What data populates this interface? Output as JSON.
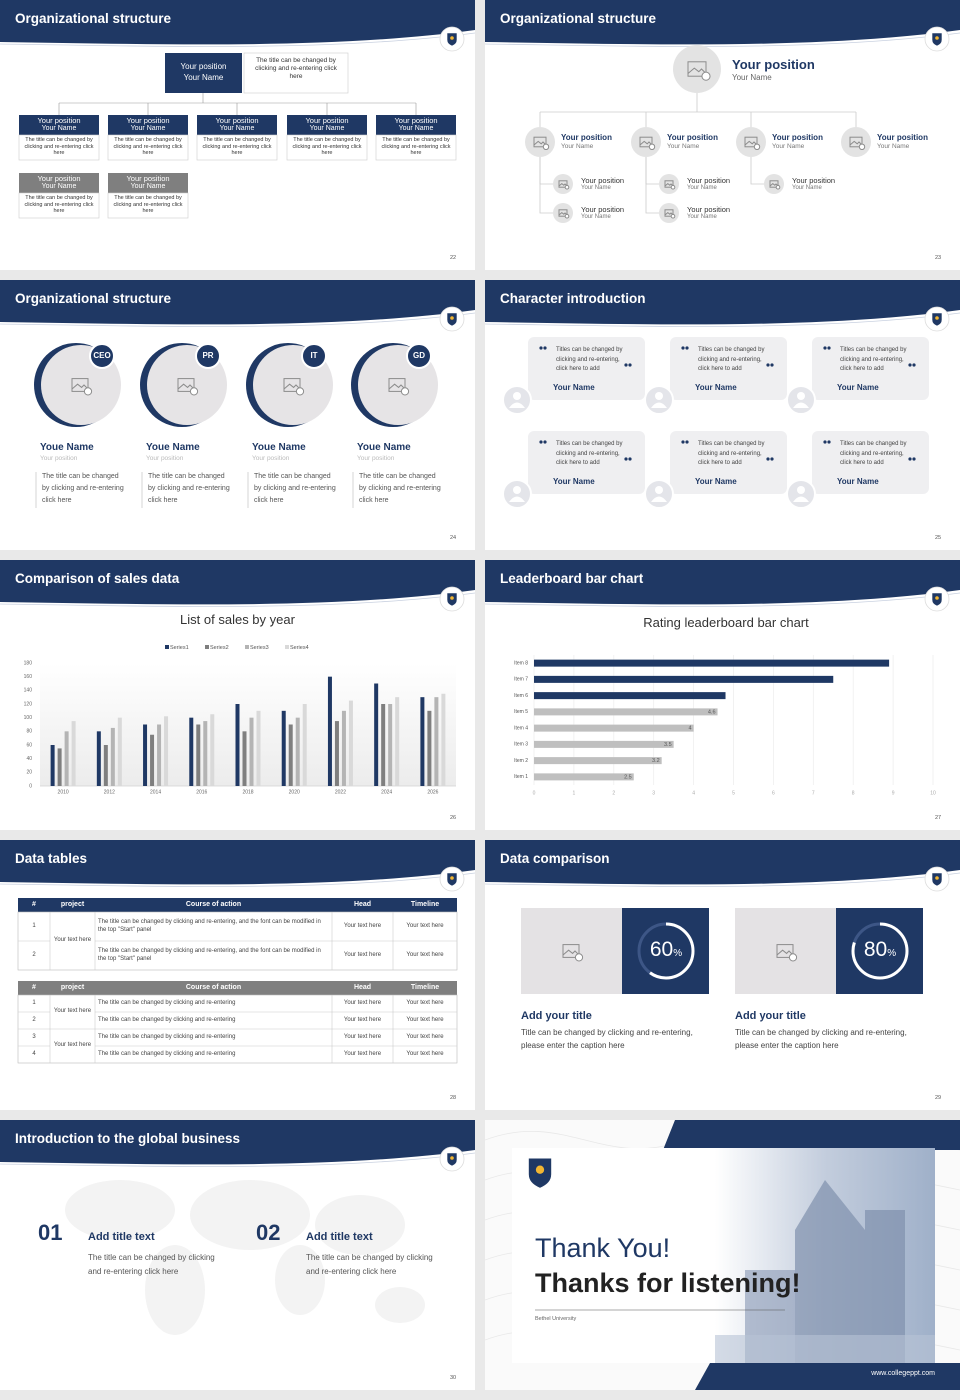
{
  "org_chart": {
    "title": "Organizational structure",
    "page": "22",
    "head": {
      "position": "Your position",
      "name": "Your Name",
      "note": "The title can be changed by clicking and re-entering click here"
    },
    "members": [
      {
        "position": "Your position",
        "name": "Your Name",
        "note": "The title can be changed by clicking and re-entering click here"
      },
      {
        "position": "Your position",
        "name": "Your Name",
        "note": "The title can be changed by clicking and re-entering click here"
      },
      {
        "position": "Your position",
        "name": "Your Name",
        "note": "The title can be changed by clicking and re-entering click here"
      },
      {
        "position": "Your position",
        "name": "Your Name",
        "note": "The title can be changed by clicking and re-entering click here"
      },
      {
        "position": "Your position",
        "name": "Your Name",
        "note": "The title can be changed by clicking and re-entering click here"
      }
    ],
    "secondary": [
      {
        "position": "Your position",
        "name": "Your Name",
        "note": "The title can be changed by clicking and re-entering click here"
      },
      {
        "position": "Your position",
        "name": "Your Name",
        "note": "The title can be changed by clicking and re-entering click here"
      }
    ]
  },
  "org_tree": {
    "title": "Organizational structure",
    "page": "23",
    "head": {
      "position": "Your position",
      "name": "Your Name"
    },
    "members": [
      {
        "position": "Your position",
        "name": "Your Name",
        "children": [
          {
            "position": "Your position",
            "name": "Your Name"
          },
          {
            "position": "Your position",
            "name": "Your Name"
          }
        ]
      },
      {
        "position": "Your position",
        "name": "Your Name",
        "children": [
          {
            "position": "Your position",
            "name": "Your Name"
          },
          {
            "position": "Your position",
            "name": "Your Name"
          }
        ]
      },
      {
        "position": "Your position",
        "name": "Your Name",
        "children": [
          {
            "position": "Your position",
            "name": "Your Name"
          }
        ]
      },
      {
        "position": "Your position",
        "name": "Your Name",
        "children": []
      }
    ]
  },
  "team": {
    "title": "Organizational structure",
    "page": "24",
    "members": [
      {
        "badge": "CEO",
        "name": "Youe Name",
        "position": "Your position",
        "note": "The title can be changed by clicking and re-entering click here"
      },
      {
        "badge": "PR",
        "name": "Youe Name",
        "position": "Your position",
        "note": "The title can be changed by clicking and re-entering click here"
      },
      {
        "badge": "IT",
        "name": "Youe Name",
        "position": "Your position",
        "note": "The title can be changed by clicking and re-entering click here"
      },
      {
        "badge": "GD",
        "name": "Youe Name",
        "position": "Your position",
        "note": "The title can be changed by clicking and re-entering click here"
      }
    ]
  },
  "characters": {
    "title": "Character introduction",
    "page": "25",
    "cards": [
      {
        "quote": "Titles can be changed by clicking and re-entering, click here to add",
        "name": "Your Name"
      },
      {
        "quote": "Titles can be changed by clicking and re-entering, click here to add",
        "name": "Your Name"
      },
      {
        "quote": "Titles can be changed by clicking and re-entering, click here to add",
        "name": "Your Name"
      },
      {
        "quote": "Titles can be changed by clicking and re-entering, click here to add",
        "name": "Your Name"
      },
      {
        "quote": "Titles can be changed by clicking and re-entering, click here to add",
        "name": "Your Name"
      },
      {
        "quote": "Titles can be changed by clicking and re-entering, click here to add",
        "name": "Your Name"
      }
    ]
  },
  "sales_slide": {
    "title": "Comparison of sales data",
    "page": "26"
  },
  "leaderboard_slide": {
    "title": "Leaderboard bar chart",
    "page": "27"
  },
  "chart_data": [
    {
      "type": "bar",
      "title": "List of sales by year",
      "categories": [
        "2010",
        "2012",
        "2014",
        "2016",
        "2018",
        "2020",
        "2022",
        "2024",
        "2026"
      ],
      "series": [
        {
          "name": "Series1",
          "color": "#1f3864",
          "values": [
            60,
            80,
            90,
            100,
            120,
            110,
            160,
            150,
            130
          ]
        },
        {
          "name": "Series2",
          "color": "#7f7f7f",
          "values": [
            55,
            60,
            75,
            90,
            80,
            90,
            95,
            120,
            110
          ]
        },
        {
          "name": "Series3",
          "color": "#b4b4b4",
          "values": [
            80,
            85,
            90,
            95,
            100,
            100,
            110,
            120,
            130
          ]
        },
        {
          "name": "Series4",
          "color": "#d9d9d9",
          "values": [
            95,
            100,
            102,
            105,
            110,
            120,
            125,
            130,
            135
          ]
        }
      ],
      "ylim": [
        0,
        180
      ],
      "yticks": [
        0,
        20,
        40,
        60,
        80,
        100,
        120,
        140,
        160,
        180
      ],
      "grid": false
    },
    {
      "type": "barh",
      "title": "Rating leaderboard bar chart",
      "categories": [
        "Item 1",
        "Item 2",
        "Item 3",
        "Item 4",
        "Item 5",
        "Item 6",
        "Item 7",
        "Item 8"
      ],
      "values": [
        2.5,
        3.2,
        3.5,
        4,
        4.6,
        4.8,
        7.5,
        8.9
      ],
      "value_labels": [
        "2.5",
        "3.2",
        "3.5",
        "4",
        "4.6",
        null,
        null,
        null
      ],
      "colors": [
        "#bfbfbf",
        "#bfbfbf",
        "#bfbfbf",
        "#bfbfbf",
        "#bfbfbf",
        "#1f3864",
        "#1f3864",
        "#1f3864"
      ],
      "xlim": [
        0,
        10
      ],
      "xticks": [
        0,
        1,
        2,
        3,
        4,
        5,
        6,
        7,
        8,
        9,
        10
      ],
      "grid": true
    }
  ],
  "data_tables": {
    "title": "Data tables",
    "page": "28",
    "tables": [
      {
        "header": [
          "#",
          "project",
          "Course of action",
          "Head",
          "Timeline"
        ],
        "rows": [
          [
            "1",
            "Your text here",
            "The title can be changed by clicking and re-entering, and the font can be modified in the top \"Start\" panel",
            "Your text here",
            "Your text here"
          ],
          [
            "2",
            null,
            "The title can be changed by clicking and re-entering, and the font can be modified in the top \"Start\" panel",
            "Your text here",
            "Your text here"
          ]
        ]
      },
      {
        "header": [
          "#",
          "project",
          "Course of action",
          "Head",
          "Timeline"
        ],
        "rows": [
          [
            "1",
            "Your text here",
            "The title can be changed by clicking and re-entering",
            "Your text here",
            "Your text here"
          ],
          [
            "2",
            null,
            "The title can be changed by clicking and re-entering",
            "Your text here",
            "Your text here"
          ],
          [
            "3",
            "Your text here",
            "The title can be changed by clicking and re-entering",
            "Your text here",
            "Your text here"
          ],
          [
            "4",
            null,
            "The title can be changed by clicking and re-entering",
            "Your text here",
            "Your text here"
          ]
        ]
      }
    ]
  },
  "data_comparison": {
    "title": "Data comparison",
    "page": "29",
    "items": [
      {
        "percent": 60,
        "unit": "%",
        "heading": "Add your title",
        "text": "Title can be changed by clicking and re-entering, please enter the caption here"
      },
      {
        "percent": 80,
        "unit": "%",
        "heading": "Add your title",
        "text": "Title can be changed by clicking and re-entering, please enter the caption here"
      }
    ]
  },
  "global_business": {
    "title": "Introduction to the global business",
    "page": "30",
    "items": [
      {
        "number": "01",
        "heading": "Add title text",
        "text": "The title can be changed by clicking and re-entering click here"
      },
      {
        "number": "02",
        "heading": "Add title text",
        "text": "The title can be changed by clicking and re-entering click here"
      }
    ]
  },
  "closing": {
    "title": "Thank You!",
    "subtitle": "Thanks for listening!",
    "org": "Bethel University",
    "url": "www.collegeppt.com"
  }
}
